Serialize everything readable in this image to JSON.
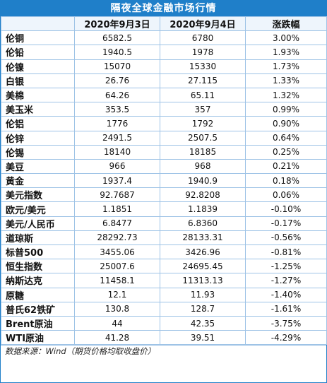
{
  "title": "隔夜全球金融市场行情",
  "headers": [
    "",
    "2020年9月3日",
    "2020年9月4日",
    "涨跌幅"
  ],
  "rows": [
    [
      "伦铜",
      "6582.5",
      "6780",
      "3.00%"
    ],
    [
      "伦铅",
      "1940.5",
      "1978",
      "1.93%"
    ],
    [
      "伦镍",
      "15070",
      "15330",
      "1.73%"
    ],
    [
      "白银",
      "26.76",
      "27.115",
      "1.33%"
    ],
    [
      "美棉",
      "64.26",
      "65.11",
      "1.32%"
    ],
    [
      "美玉米",
      "353.5",
      "357",
      "0.99%"
    ],
    [
      "伦铝",
      "1776",
      "1792",
      "0.90%"
    ],
    [
      "伦锌",
      "2491.5",
      "2507.5",
      "0.64%"
    ],
    [
      "伦锡",
      "18140",
      "18185",
      "0.25%"
    ],
    [
      "美豆",
      "966",
      "968",
      "0.21%"
    ],
    [
      "黄金",
      "1937.4",
      "1940.9",
      "0.18%"
    ],
    [
      "美元指数",
      "92.7687",
      "92.8208",
      "0.06%"
    ],
    [
      "欧元/美元",
      "1.1851",
      "1.1839",
      "-0.10%"
    ],
    [
      "美元/人民币",
      "6.8477",
      "6.8360",
      "-0.17%"
    ],
    [
      "道琼斯",
      "28292.73",
      "28133.31",
      "-0.56%"
    ],
    [
      "标普500",
      "3455.06",
      "3426.96",
      "-0.81%"
    ],
    [
      "恒生指数",
      "25007.6",
      "24695.45",
      "-1.25%"
    ],
    [
      "纳斯达克",
      "11458.1",
      "11313.13",
      "-1.27%"
    ],
    [
      "原糖",
      "12.1",
      "11.93",
      "-1.40%"
    ],
    [
      "普氏62铁矿",
      "130.8",
      "128.7",
      "-1.61%"
    ],
    [
      "Brent原油",
      "44",
      "42.35",
      "-3.75%"
    ],
    [
      "WTI原油",
      "41.28",
      "39.51",
      "-4.29%"
    ]
  ],
  "footer": "数据来源：Wind（期货价格均取收盘价）",
  "colors": {
    "title_bg": "#1f7fc9",
    "border": "#9ec3e6"
  }
}
